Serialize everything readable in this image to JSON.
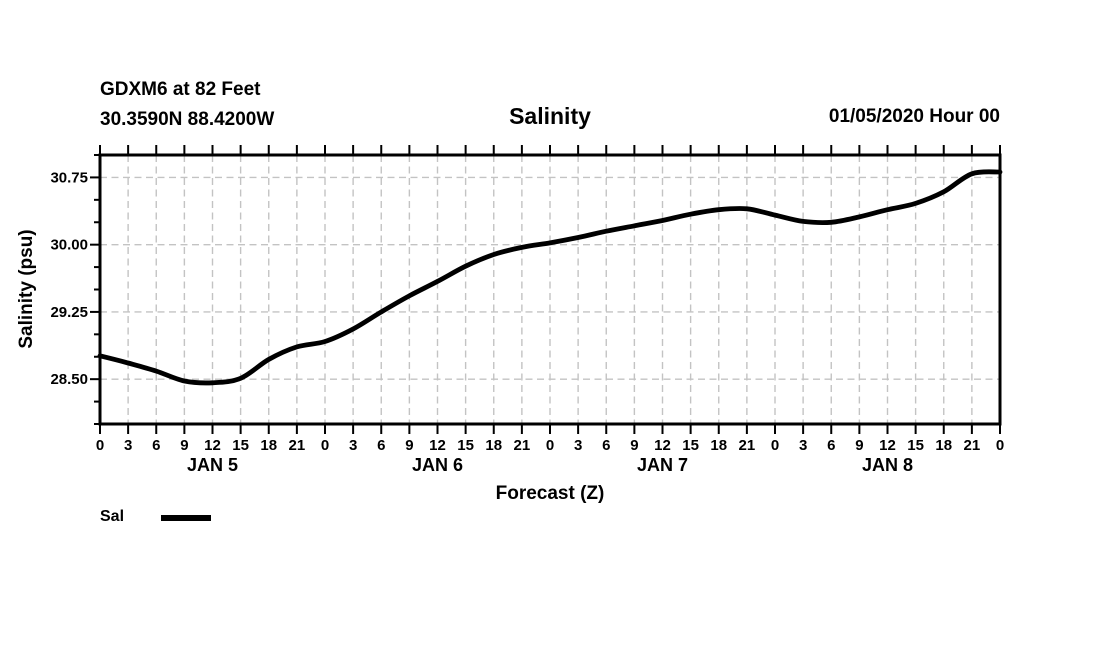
{
  "header": {
    "station_name": "GDXM6 at 82 Feet",
    "station_coords": "30.3590N 88.4200W",
    "title": "Salinity",
    "run_time": "01/05/2020 Hour 00"
  },
  "legend": {
    "label": "Sal"
  },
  "chart_data": {
    "type": "line",
    "title": "Salinity",
    "xlabel": "Forecast (Z)",
    "ylabel": "Salinity (psu)",
    "ylim": [
      28.0,
      31.0
    ],
    "xlim_hours": [
      0,
      96
    ],
    "x_tick_step_hours": 3,
    "x_tick_labels": [
      "0",
      "3",
      "6",
      "9",
      "12",
      "15",
      "18",
      "21",
      "0",
      "3",
      "6",
      "9",
      "12",
      "15",
      "18",
      "21",
      "0",
      "3",
      "6",
      "9",
      "12",
      "15",
      "18",
      "21",
      "0",
      "3",
      "6",
      "9",
      "12",
      "15",
      "18",
      "21",
      "0"
    ],
    "day_labels": [
      "JAN 5",
      "JAN 6",
      "JAN 7",
      "JAN 8"
    ],
    "y_major_ticks": [
      28.5,
      29.25,
      30.0,
      30.75
    ],
    "y_major_tick_labels": [
      "28.50",
      "29.25",
      "30.00",
      "30.75"
    ],
    "y_minor_step": 0.25,
    "grid": "dashed",
    "legend_position": "bottom-left",
    "colors": {
      "line": "#000000",
      "axis": "#000000",
      "grid": "#c3c3c3",
      "text": "#000000",
      "background": "#ffffff"
    },
    "series": [
      {
        "name": "Sal",
        "x_hours": [
          0,
          3,
          6,
          9,
          12,
          15,
          18,
          21,
          24,
          27,
          30,
          33,
          36,
          39,
          42,
          45,
          48,
          51,
          54,
          57,
          60,
          63,
          66,
          69,
          72,
          75,
          78,
          81,
          84,
          87,
          90,
          93,
          96
        ],
        "values": [
          28.76,
          28.68,
          28.59,
          28.48,
          28.46,
          28.51,
          28.72,
          28.86,
          28.92,
          29.06,
          29.25,
          29.43,
          29.59,
          29.76,
          29.89,
          29.97,
          30.02,
          30.08,
          30.15,
          30.21,
          30.27,
          30.34,
          30.39,
          30.4,
          30.33,
          30.26,
          30.25,
          30.31,
          30.39,
          30.46,
          30.59,
          30.79,
          30.81
        ]
      }
    ]
  }
}
